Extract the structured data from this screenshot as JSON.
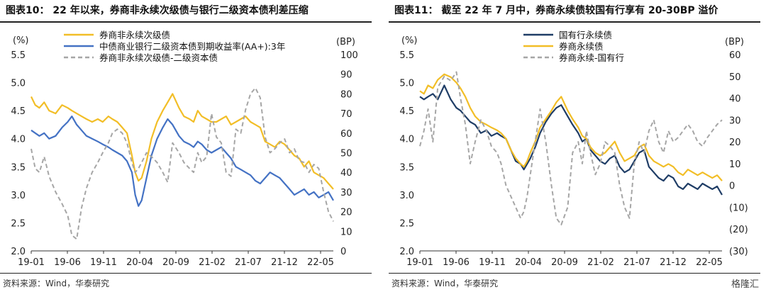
{
  "watermark": "格隆汇",
  "colors": {
    "gold": "#F2BE27",
    "blue": "#4472C4",
    "navy": "#1F3D66",
    "gray": "#A6A6A6"
  },
  "chart_data": [
    {
      "type": "line",
      "title": "图表10：  22 年以来，券商非永续次级债与银行二级资本债利差压缩",
      "source": "资料来源：Wind，华泰研究",
      "ylabel": "(%)",
      "y2label": "(BP)",
      "ylim": [
        2.0,
        5.5
      ],
      "y2lim": [
        0,
        100
      ],
      "yticks": [
        "5.5",
        "5.0",
        "4.5",
        "4.0",
        "3.5",
        "3.0",
        "2.5",
        "2.0"
      ],
      "y2ticks": [
        "100",
        "90",
        "80",
        "70",
        "60",
        "50",
        "40",
        "30",
        "20",
        "10",
        "0"
      ],
      "xlim": [
        2019.0,
        2022.72
      ],
      "xticks": [
        "19-01",
        "19-06",
        "19-11",
        "20-04",
        "20-09",
        "21-02",
        "21-07",
        "21-12",
        "22-05"
      ],
      "legend_position": "top-left",
      "series": [
        {
          "name": "券商非永续次级债",
          "axis": "left",
          "style": "solid",
          "color": "#F2BE27",
          "x": [
            2019.0,
            2019.05,
            2019.1,
            2019.16,
            2019.22,
            2019.3,
            2019.38,
            2019.45,
            2019.5,
            2019.56,
            2019.62,
            2019.68,
            2019.75,
            2019.82,
            2019.88,
            2019.95,
            2020.0,
            2020.06,
            2020.12,
            2020.18,
            2020.24,
            2020.28,
            2020.32,
            2020.36,
            2020.42,
            2020.48,
            2020.55,
            2020.62,
            2020.68,
            2020.74,
            2020.82,
            2020.88,
            2020.95,
            2021.0,
            2021.05,
            2021.1,
            2021.16,
            2021.22,
            2021.28,
            2021.34,
            2021.4,
            2021.46,
            2021.52,
            2021.58,
            2021.64,
            2021.7,
            2021.76,
            2021.82,
            2021.88,
            2021.94,
            2022.0,
            2022.06,
            2022.12,
            2022.18,
            2022.24,
            2022.3,
            2022.36,
            2022.42,
            2022.48,
            2022.54,
            2022.6,
            2022.66,
            2022.72
          ],
          "y": [
            4.75,
            4.6,
            4.55,
            4.65,
            4.5,
            4.45,
            4.6,
            4.55,
            4.5,
            4.45,
            4.4,
            4.35,
            4.3,
            4.35,
            4.3,
            4.4,
            4.35,
            4.3,
            4.2,
            4.1,
            3.7,
            3.4,
            3.25,
            3.3,
            3.6,
            4.0,
            4.3,
            4.5,
            4.65,
            4.8,
            4.55,
            4.4,
            4.35,
            4.3,
            4.5,
            4.4,
            4.35,
            4.3,
            4.3,
            4.35,
            4.4,
            4.25,
            4.3,
            4.35,
            4.4,
            4.3,
            4.25,
            4.2,
            3.95,
            3.9,
            3.85,
            3.95,
            3.9,
            3.8,
            3.7,
            3.65,
            3.5,
            3.6,
            3.4,
            3.35,
            3.3,
            3.2,
            3.1
          ]
        },
        {
          "name": "中债商业银行二级资本债到期收益率(AA+):3年",
          "axis": "left",
          "style": "solid",
          "color": "#4472C4",
          "x": [
            2019.0,
            2019.05,
            2019.1,
            2019.16,
            2019.22,
            2019.3,
            2019.38,
            2019.45,
            2019.5,
            2019.56,
            2019.62,
            2019.68,
            2019.75,
            2019.82,
            2019.88,
            2019.95,
            2020.0,
            2020.06,
            2020.12,
            2020.18,
            2020.24,
            2020.28,
            2020.32,
            2020.36,
            2020.42,
            2020.48,
            2020.55,
            2020.62,
            2020.68,
            2020.74,
            2020.82,
            2020.88,
            2020.95,
            2021.0,
            2021.05,
            2021.1,
            2021.16,
            2021.22,
            2021.28,
            2021.34,
            2021.4,
            2021.46,
            2021.52,
            2021.58,
            2021.64,
            2021.7,
            2021.76,
            2021.82,
            2021.88,
            2021.94,
            2022.0,
            2022.06,
            2022.12,
            2022.18,
            2022.24,
            2022.3,
            2022.36,
            2022.42,
            2022.48,
            2022.54,
            2022.6,
            2022.66,
            2022.72
          ],
          "y": [
            4.15,
            4.1,
            4.05,
            4.1,
            4.0,
            4.05,
            4.2,
            4.3,
            4.4,
            4.25,
            4.15,
            4.05,
            4.0,
            3.95,
            3.9,
            3.85,
            3.8,
            3.75,
            3.7,
            3.6,
            3.4,
            3.0,
            2.8,
            2.9,
            3.3,
            3.7,
            4.0,
            4.2,
            4.35,
            4.25,
            4.05,
            3.95,
            3.9,
            3.85,
            3.95,
            3.9,
            3.8,
            3.75,
            3.8,
            3.85,
            3.75,
            3.65,
            3.5,
            3.45,
            3.4,
            3.35,
            3.25,
            3.2,
            3.3,
            3.4,
            3.35,
            3.3,
            3.2,
            3.1,
            3.0,
            3.05,
            3.1,
            3.0,
            3.05,
            2.95,
            3.0,
            3.05,
            2.9
          ]
        },
        {
          "name": "券商非永续次级债-二级资本债",
          "axis": "right",
          "style": "dashed",
          "color": "#A6A6A6",
          "x": [
            2019.0,
            2019.05,
            2019.1,
            2019.16,
            2019.22,
            2019.3,
            2019.38,
            2019.45,
            2019.5,
            2019.56,
            2019.62,
            2019.68,
            2019.75,
            2019.82,
            2019.88,
            2019.95,
            2020.0,
            2020.06,
            2020.12,
            2020.18,
            2020.24,
            2020.28,
            2020.32,
            2020.36,
            2020.42,
            2020.48,
            2020.55,
            2020.62,
            2020.68,
            2020.74,
            2020.82,
            2020.88,
            2020.95,
            2021.0,
            2021.05,
            2021.1,
            2021.16,
            2021.22,
            2021.28,
            2021.34,
            2021.4,
            2021.46,
            2021.52,
            2021.58,
            2021.64,
            2021.7,
            2021.76,
            2021.82,
            2021.88,
            2021.94,
            2022.0,
            2022.06,
            2022.12,
            2022.18,
            2022.24,
            2022.3,
            2022.36,
            2022.42,
            2022.48,
            2022.54,
            2022.6,
            2022.66,
            2022.72
          ],
          "y": [
            52,
            42,
            40,
            48,
            38,
            30,
            24,
            18,
            8,
            6,
            22,
            32,
            40,
            45,
            50,
            55,
            60,
            62,
            60,
            55,
            45,
            40,
            42,
            45,
            50,
            48,
            45,
            40,
            35,
            55,
            50,
            45,
            42,
            40,
            50,
            45,
            48,
            70,
            58,
            55,
            40,
            38,
            62,
            60,
            72,
            80,
            83,
            78,
            58,
            50,
            52,
            55,
            57,
            50,
            52,
            46,
            45,
            40,
            44,
            42,
            30,
            20,
            15
          ]
        }
      ]
    },
    {
      "type": "line",
      "title": "图表11：  截至 22 年 7 月中，券商永续债较国有行享有 20-30BP 溢价",
      "source": "资料来源：Wind，华泰研究",
      "ylabel": "(%)",
      "y2label": "(BP)",
      "ylim": [
        2.0,
        5.5
      ],
      "y2lim": [
        -30,
        60
      ],
      "yticks": [
        "5.5",
        "5.0",
        "4.5",
        "4.0",
        "3.5",
        "3.0",
        "2.5",
        "2.0"
      ],
      "y2ticks": [
        "60",
        "50",
        "40",
        "30",
        "20",
        "10",
        "0",
        "(10)",
        "(20)",
        "(30)"
      ],
      "xlim": [
        2019.0,
        2022.72
      ],
      "xticks": [
        "19-01",
        "19-06",
        "19-11",
        "20-04",
        "20-09",
        "21-02",
        "21-07",
        "21-12",
        "22-05"
      ],
      "legend_position": "top-right",
      "series": [
        {
          "name": "国有行永续债",
          "axis": "left",
          "style": "solid",
          "color": "#1F3D66",
          "x": [
            2019.0,
            2019.05,
            2019.1,
            2019.16,
            2019.22,
            2019.3,
            2019.38,
            2019.45,
            2019.5,
            2019.56,
            2019.62,
            2019.68,
            2019.75,
            2019.82,
            2019.88,
            2019.95,
            2020.0,
            2020.06,
            2020.12,
            2020.18,
            2020.24,
            2020.28,
            2020.32,
            2020.36,
            2020.42,
            2020.48,
            2020.55,
            2020.62,
            2020.68,
            2020.74,
            2020.82,
            2020.88,
            2020.95,
            2021.0,
            2021.05,
            2021.1,
            2021.16,
            2021.22,
            2021.28,
            2021.34,
            2021.4,
            2021.46,
            2021.52,
            2021.58,
            2021.64,
            2021.7,
            2021.76,
            2021.82,
            2021.88,
            2021.94,
            2022.0,
            2022.06,
            2022.12,
            2022.18,
            2022.24,
            2022.3,
            2022.36,
            2022.42,
            2022.48,
            2022.54,
            2022.6,
            2022.66,
            2022.72
          ],
          "y": [
            4.75,
            4.7,
            4.75,
            4.8,
            4.7,
            4.95,
            4.7,
            4.55,
            4.5,
            4.4,
            4.3,
            4.25,
            4.1,
            4.15,
            4.05,
            4.1,
            4.05,
            4.0,
            3.8,
            3.6,
            3.55,
            3.45,
            3.55,
            3.65,
            3.85,
            4.1,
            4.3,
            4.45,
            4.55,
            4.6,
            4.4,
            4.25,
            4.1,
            3.95,
            4.0,
            3.8,
            3.7,
            3.6,
            3.55,
            3.65,
            3.7,
            3.5,
            3.4,
            3.45,
            3.6,
            3.75,
            3.8,
            3.5,
            3.4,
            3.3,
            3.25,
            3.35,
            3.3,
            3.15,
            3.1,
            3.2,
            3.15,
            3.1,
            3.2,
            3.15,
            3.1,
            3.15,
            3.0
          ]
        },
        {
          "name": "券商永续债",
          "axis": "left",
          "style": "solid",
          "color": "#F2BE27",
          "x": [
            2019.0,
            2019.05,
            2019.1,
            2019.16,
            2019.22,
            2019.3,
            2019.38,
            2019.45,
            2019.5,
            2019.56,
            2019.62,
            2019.68,
            2019.75,
            2019.82,
            2019.88,
            2019.95,
            2020.0,
            2020.06,
            2020.12,
            2020.18,
            2020.24,
            2020.28,
            2020.32,
            2020.36,
            2020.42,
            2020.48,
            2020.55,
            2020.62,
            2020.68,
            2020.74,
            2020.82,
            2020.88,
            2020.95,
            2021.0,
            2021.05,
            2021.1,
            2021.16,
            2021.22,
            2021.28,
            2021.34,
            2021.4,
            2021.46,
            2021.52,
            2021.58,
            2021.64,
            2021.7,
            2021.76,
            2021.82,
            2021.88,
            2021.94,
            2022.0,
            2022.06,
            2022.12,
            2022.18,
            2022.24,
            2022.3,
            2022.36,
            2022.42,
            2022.48,
            2022.54,
            2022.6,
            2022.66,
            2022.72
          ],
          "y": [
            4.85,
            4.8,
            4.95,
            4.9,
            5.05,
            5.15,
            5.1,
            5.0,
            4.9,
            4.75,
            4.55,
            4.4,
            4.3,
            4.25,
            4.2,
            4.15,
            4.1,
            4.0,
            3.8,
            3.65,
            3.55,
            3.5,
            3.6,
            3.75,
            3.95,
            4.2,
            4.35,
            4.5,
            4.65,
            4.75,
            4.5,
            4.35,
            4.2,
            4.05,
            4.0,
            3.85,
            3.75,
            3.7,
            3.75,
            3.85,
            3.95,
            3.75,
            3.6,
            3.65,
            3.7,
            3.85,
            3.9,
            3.7,
            3.6,
            3.55,
            3.5,
            3.55,
            3.5,
            3.4,
            3.35,
            3.45,
            3.4,
            3.35,
            3.4,
            3.35,
            3.3,
            3.35,
            3.25
          ]
        },
        {
          "name": "券商永续-国有行",
          "axis": "right",
          "style": "dashed",
          "color": "#A6A6A6",
          "x": [
            2019.0,
            2019.05,
            2019.1,
            2019.16,
            2019.22,
            2019.3,
            2019.38,
            2019.45,
            2019.5,
            2019.56,
            2019.62,
            2019.68,
            2019.75,
            2019.82,
            2019.88,
            2019.95,
            2020.0,
            2020.06,
            2020.12,
            2020.18,
            2020.24,
            2020.28,
            2020.32,
            2020.36,
            2020.42,
            2020.48,
            2020.55,
            2020.62,
            2020.68,
            2020.74,
            2020.82,
            2020.88,
            2020.95,
            2021.0,
            2021.05,
            2021.1,
            2021.16,
            2021.22,
            2021.28,
            2021.34,
            2021.4,
            2021.46,
            2021.52,
            2021.58,
            2021.64,
            2021.7,
            2021.76,
            2021.82,
            2021.88,
            2021.94,
            2022.0,
            2022.06,
            2022.12,
            2022.18,
            2022.24,
            2022.3,
            2022.36,
            2022.42,
            2022.48,
            2022.54,
            2022.6,
            2022.66,
            2022.72
          ],
          "y": [
            18,
            25,
            35,
            20,
            45,
            50,
            48,
            52,
            40,
            28,
            10,
            20,
            30,
            25,
            18,
            15,
            10,
            0,
            -5,
            -10,
            -15,
            -12,
            -5,
            5,
            20,
            35,
            20,
            0,
            -15,
            -18,
            -10,
            15,
            20,
            10,
            25,
            15,
            5,
            10,
            20,
            18,
            15,
            0,
            -10,
            -15,
            10,
            20,
            15,
            25,
            30,
            20,
            15,
            25,
            20,
            22,
            25,
            28,
            25,
            20,
            18,
            22,
            25,
            28,
            30
          ]
        }
      ]
    }
  ]
}
